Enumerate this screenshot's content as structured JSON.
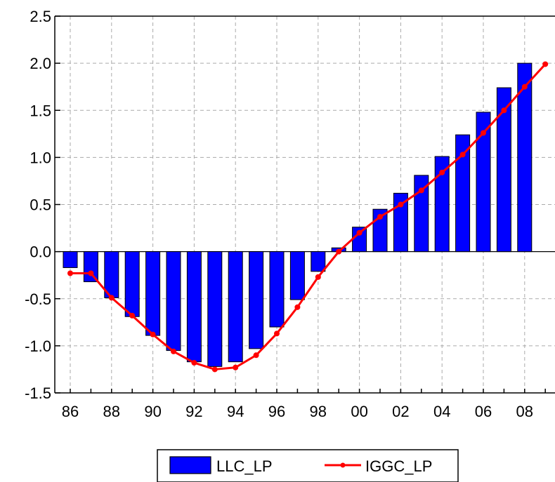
{
  "chart_data": {
    "type": "bar+line",
    "title": "",
    "xlabel": "",
    "ylabel": "",
    "ylim": [
      -1.5,
      2.5
    ],
    "yticks": [
      "-1.5",
      "-1.0",
      "-0.5",
      "0.0",
      "0.5",
      "1.0",
      "1.5",
      "2.0",
      "2.5"
    ],
    "x_years": [
      1986,
      1987,
      1988,
      1989,
      1990,
      1991,
      1992,
      1993,
      1994,
      1995,
      1996,
      1997,
      1998,
      1999,
      2000,
      2001,
      2002,
      2003,
      2004,
      2005,
      2006,
      2007,
      2008,
      2009
    ],
    "xtick_labels": [
      "86",
      "88",
      "90",
      "92",
      "94",
      "96",
      "98",
      "00",
      "02",
      "04",
      "06",
      "08"
    ],
    "grid": true,
    "legend_position": "bottom",
    "series": [
      {
        "name": "LLC_LP",
        "kind": "bar",
        "color": "#0000FF",
        "values": [
          -0.17,
          -0.32,
          -0.49,
          -0.69,
          -0.89,
          -1.05,
          -1.17,
          -1.22,
          -1.17,
          -1.03,
          -0.8,
          -0.51,
          -0.21,
          0.04,
          0.26,
          0.45,
          0.62,
          0.81,
          1.01,
          1.24,
          1.48,
          1.74,
          2.0,
          null
        ]
      },
      {
        "name": "IGGC_LP",
        "kind": "line",
        "color": "#FF0000",
        "values": [
          -0.23,
          -0.23,
          -0.49,
          -0.68,
          -0.88,
          -1.06,
          -1.18,
          -1.25,
          -1.23,
          -1.1,
          -0.87,
          -0.59,
          -0.27,
          0.0,
          0.2,
          0.37,
          0.5,
          0.65,
          0.84,
          1.03,
          1.26,
          1.5,
          1.75,
          1.99
        ]
      }
    ]
  }
}
